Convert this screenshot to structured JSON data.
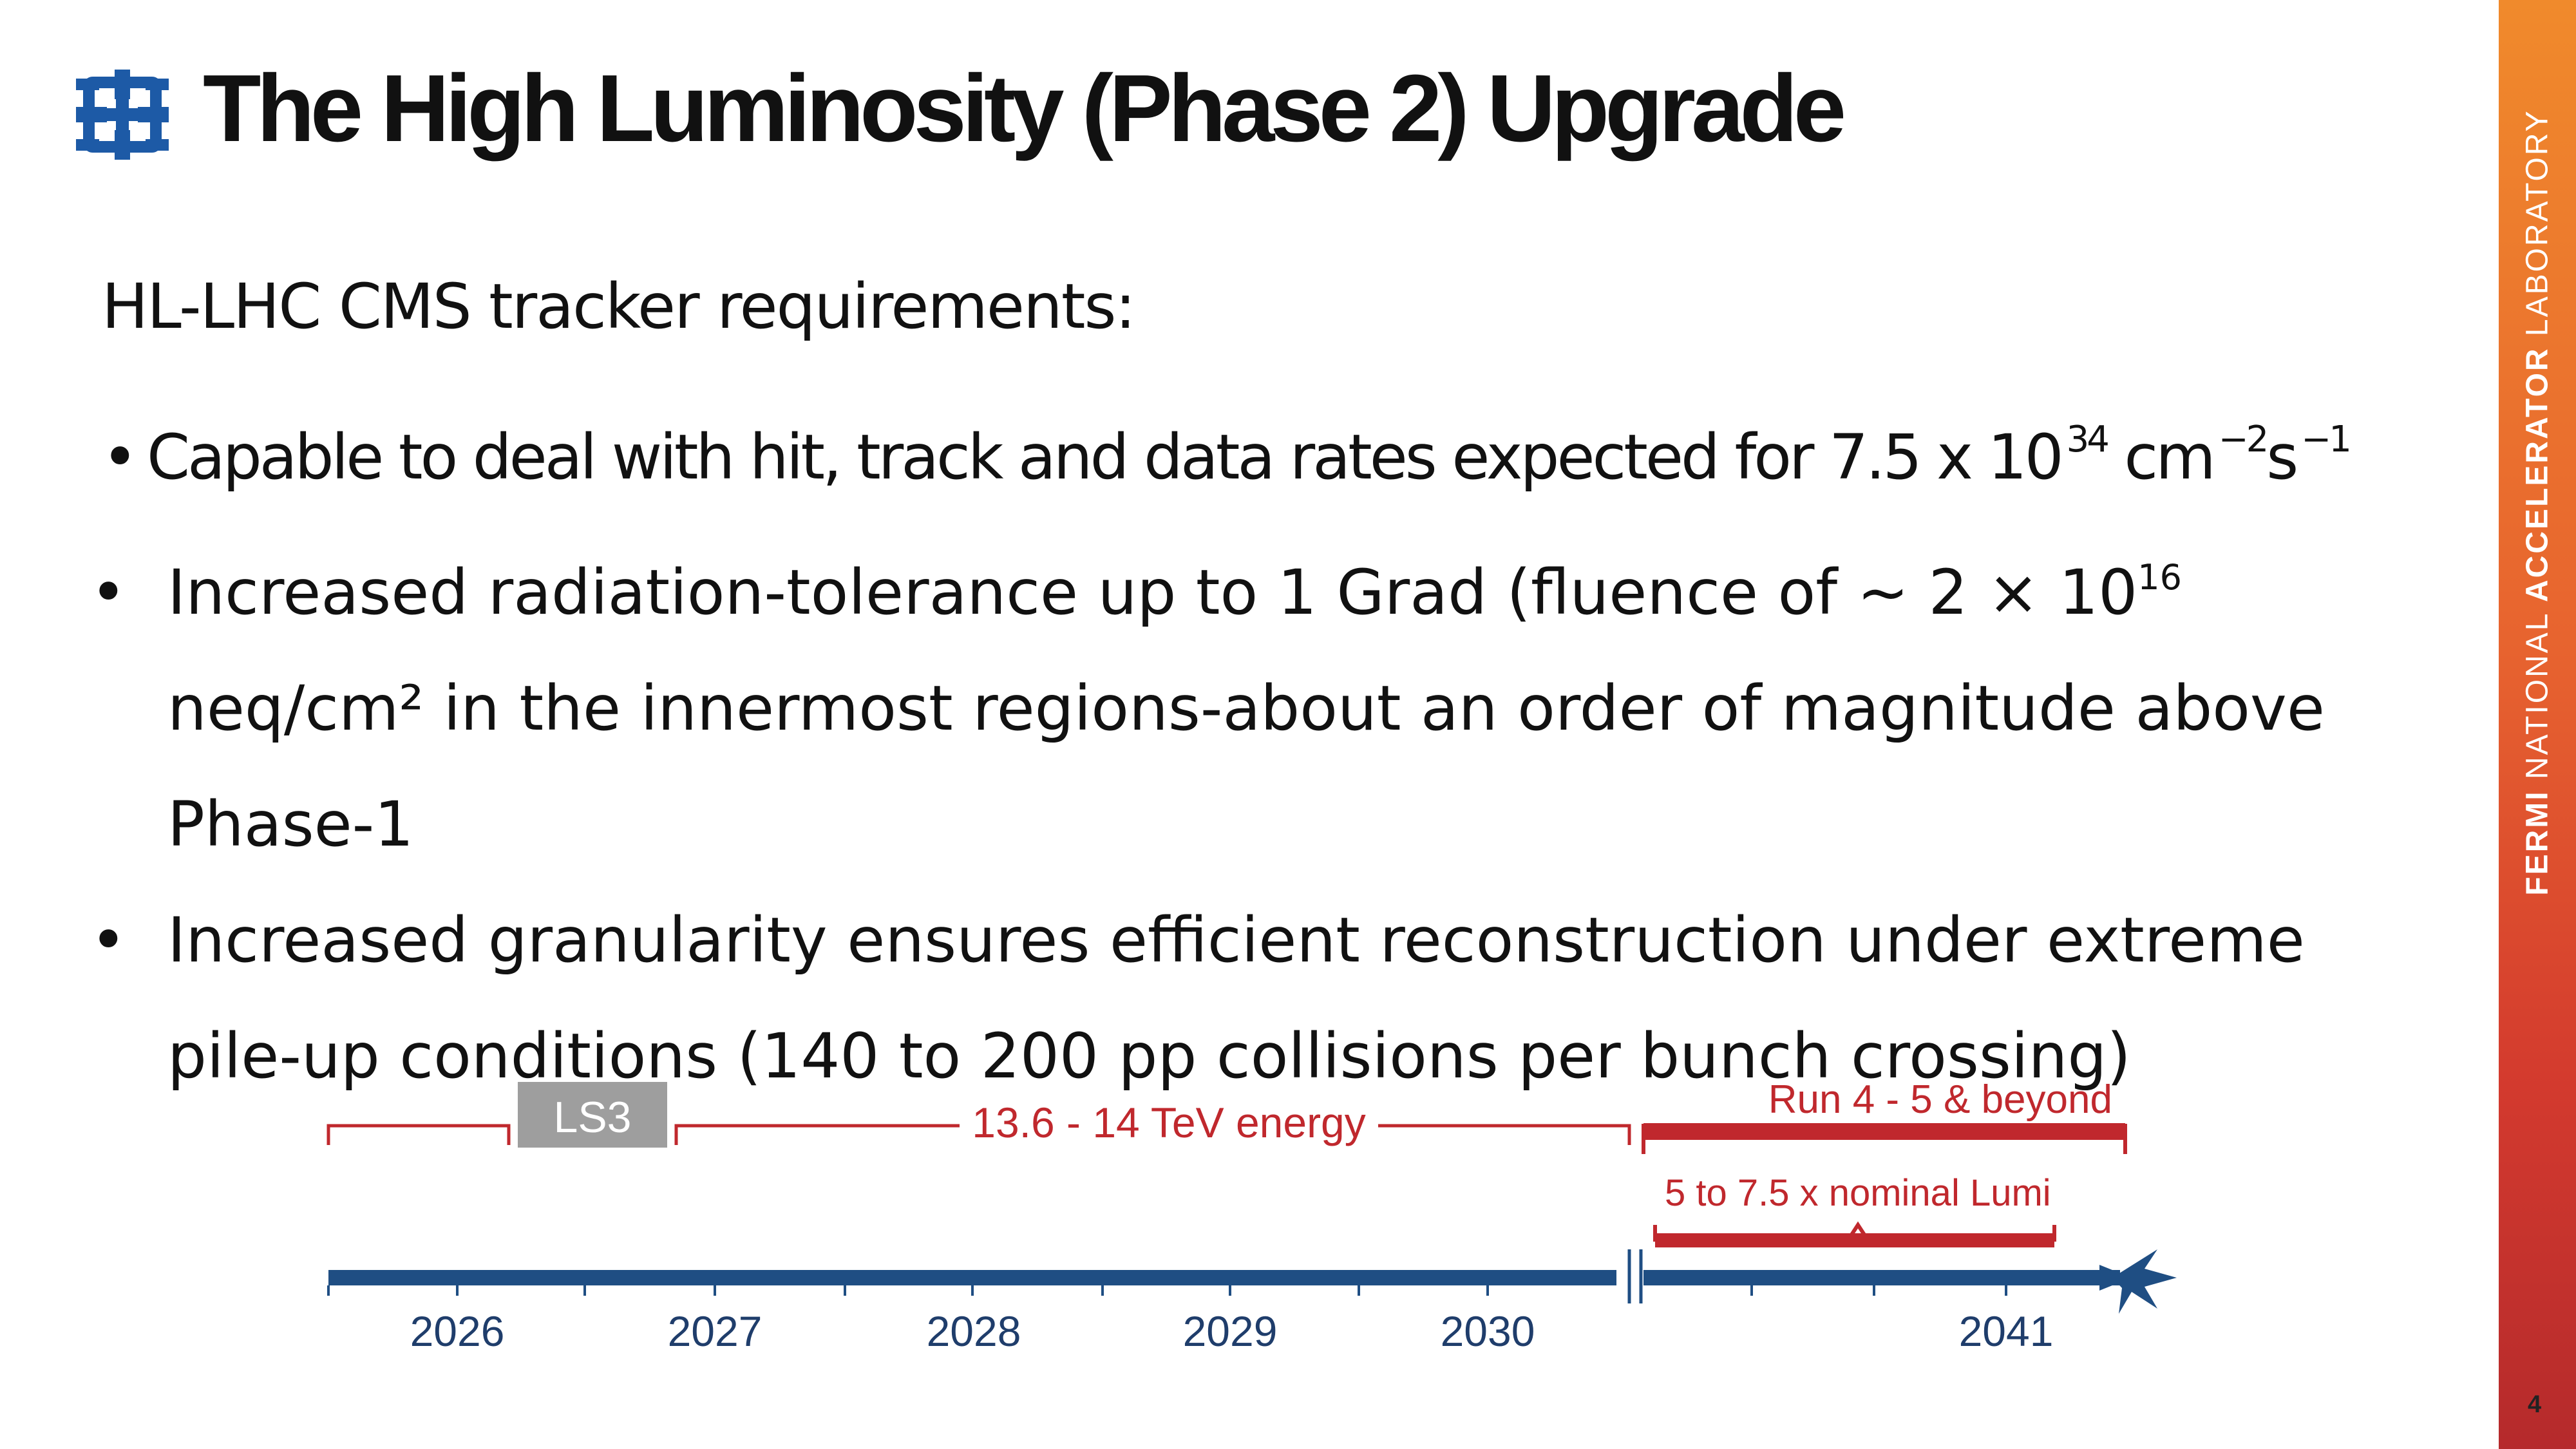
{
  "header": {
    "logo_icon": "fermilab-logo-icon",
    "title": "The High Luminosity (Phase 2) Upgrade"
  },
  "body": {
    "subheading": "HL-LHC CMS tracker requirements:",
    "bullet_1": {
      "marker": "•",
      "text": "Capable to deal with hit, track and data rates expected for 7.5 x 10",
      "exp_34": "34",
      "unit_cm": "cm",
      "exp_cm": "−2",
      "unit_s": "s",
      "exp_s": "−1"
    },
    "bullets": [
      {
        "marker": "•",
        "line_a": "Increased radiation-tolerance up to 1 Grad (fluence of ~ 2 × 10",
        "sup": "16",
        "line_b": " neq/cm² in the innermost regions-about an order of magnitude above Phase-1"
      },
      {
        "marker": "•",
        "line_a": "Increased granularity ensures efficient reconstruction under extreme pile-up conditions (140 to 200 pp collisions per bunch crossing)"
      }
    ]
  },
  "timeline": {
    "ls3_label": "LS3",
    "energy_label": "13.6 - 14 TeV energy",
    "run_label": "Run 4 - 5 & beyond",
    "lumi_label": "5 to 7.5 x nominal Lumi",
    "years": [
      "2026",
      "2027",
      "2028",
      "2029",
      "2030",
      "2041"
    ],
    "colors": {
      "axis": "#1f4e83",
      "red": "#c0282d",
      "ls3_box": "#9e9e9e"
    }
  },
  "sidebar": {
    "word_fermi": "FERMI",
    "word_national": "NATIONAL",
    "word_accelerator": "ACCELERATOR",
    "word_laboratory": "LABORATORY",
    "gradient": [
      "#f08a2c",
      "#b52a2c"
    ]
  },
  "footer": {
    "page_number": "4"
  }
}
